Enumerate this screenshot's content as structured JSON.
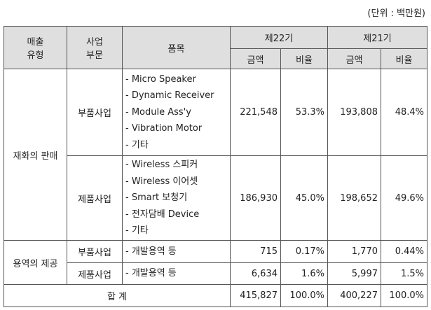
{
  "unit_note": "(단위 : 백만원)",
  "headers": {
    "type_line1": "매출",
    "type_line2": "유형",
    "division_line1": "사업",
    "division_line2": "부문",
    "product": "품목",
    "fy22": "제22기",
    "fy21": "제21기",
    "amount": "금액",
    "ratio": "비율"
  },
  "groups": [
    {
      "type": "재화의 판매",
      "rows": [
        {
          "division": "부품사업",
          "items": [
            "- Micro Speaker",
            "- Dynamic Receiver",
            "- Module Ass'y",
            "- Vibration Motor",
            "- 기타"
          ],
          "fy22_amount": "221,548",
          "fy22_ratio": "53.3%",
          "fy21_amount": "193,808",
          "fy21_ratio": "48.4%"
        },
        {
          "division": "제품사업",
          "items": [
            "- Wireless 스피커",
            "- Wireless 이어셋",
            "- Smart 보청기",
            "- 전자담배 Device",
            "- 기타"
          ],
          "fy22_amount": "186,930",
          "fy22_ratio": "45.0%",
          "fy21_amount": "198,652",
          "fy21_ratio": "49.6%"
        }
      ]
    },
    {
      "type": "용역의 제공",
      "rows": [
        {
          "division": "부품사업",
          "items": [
            "- 개발용역 등"
          ],
          "fy22_amount": "715",
          "fy22_ratio": "0.17%",
          "fy21_amount": "1,770",
          "fy21_ratio": "0.44%"
        },
        {
          "division": "제품사업",
          "items": [
            "- 개발용역 등"
          ],
          "fy22_amount": "6,634",
          "fy22_ratio": "1.6%",
          "fy21_amount": "5,997",
          "fy21_ratio": "1.5%"
        }
      ]
    }
  ],
  "total": {
    "label": "합 계",
    "fy22_amount": "415,827",
    "fy22_ratio": "100.0%",
    "fy21_amount": "400,227",
    "fy21_ratio": "100.0%"
  }
}
